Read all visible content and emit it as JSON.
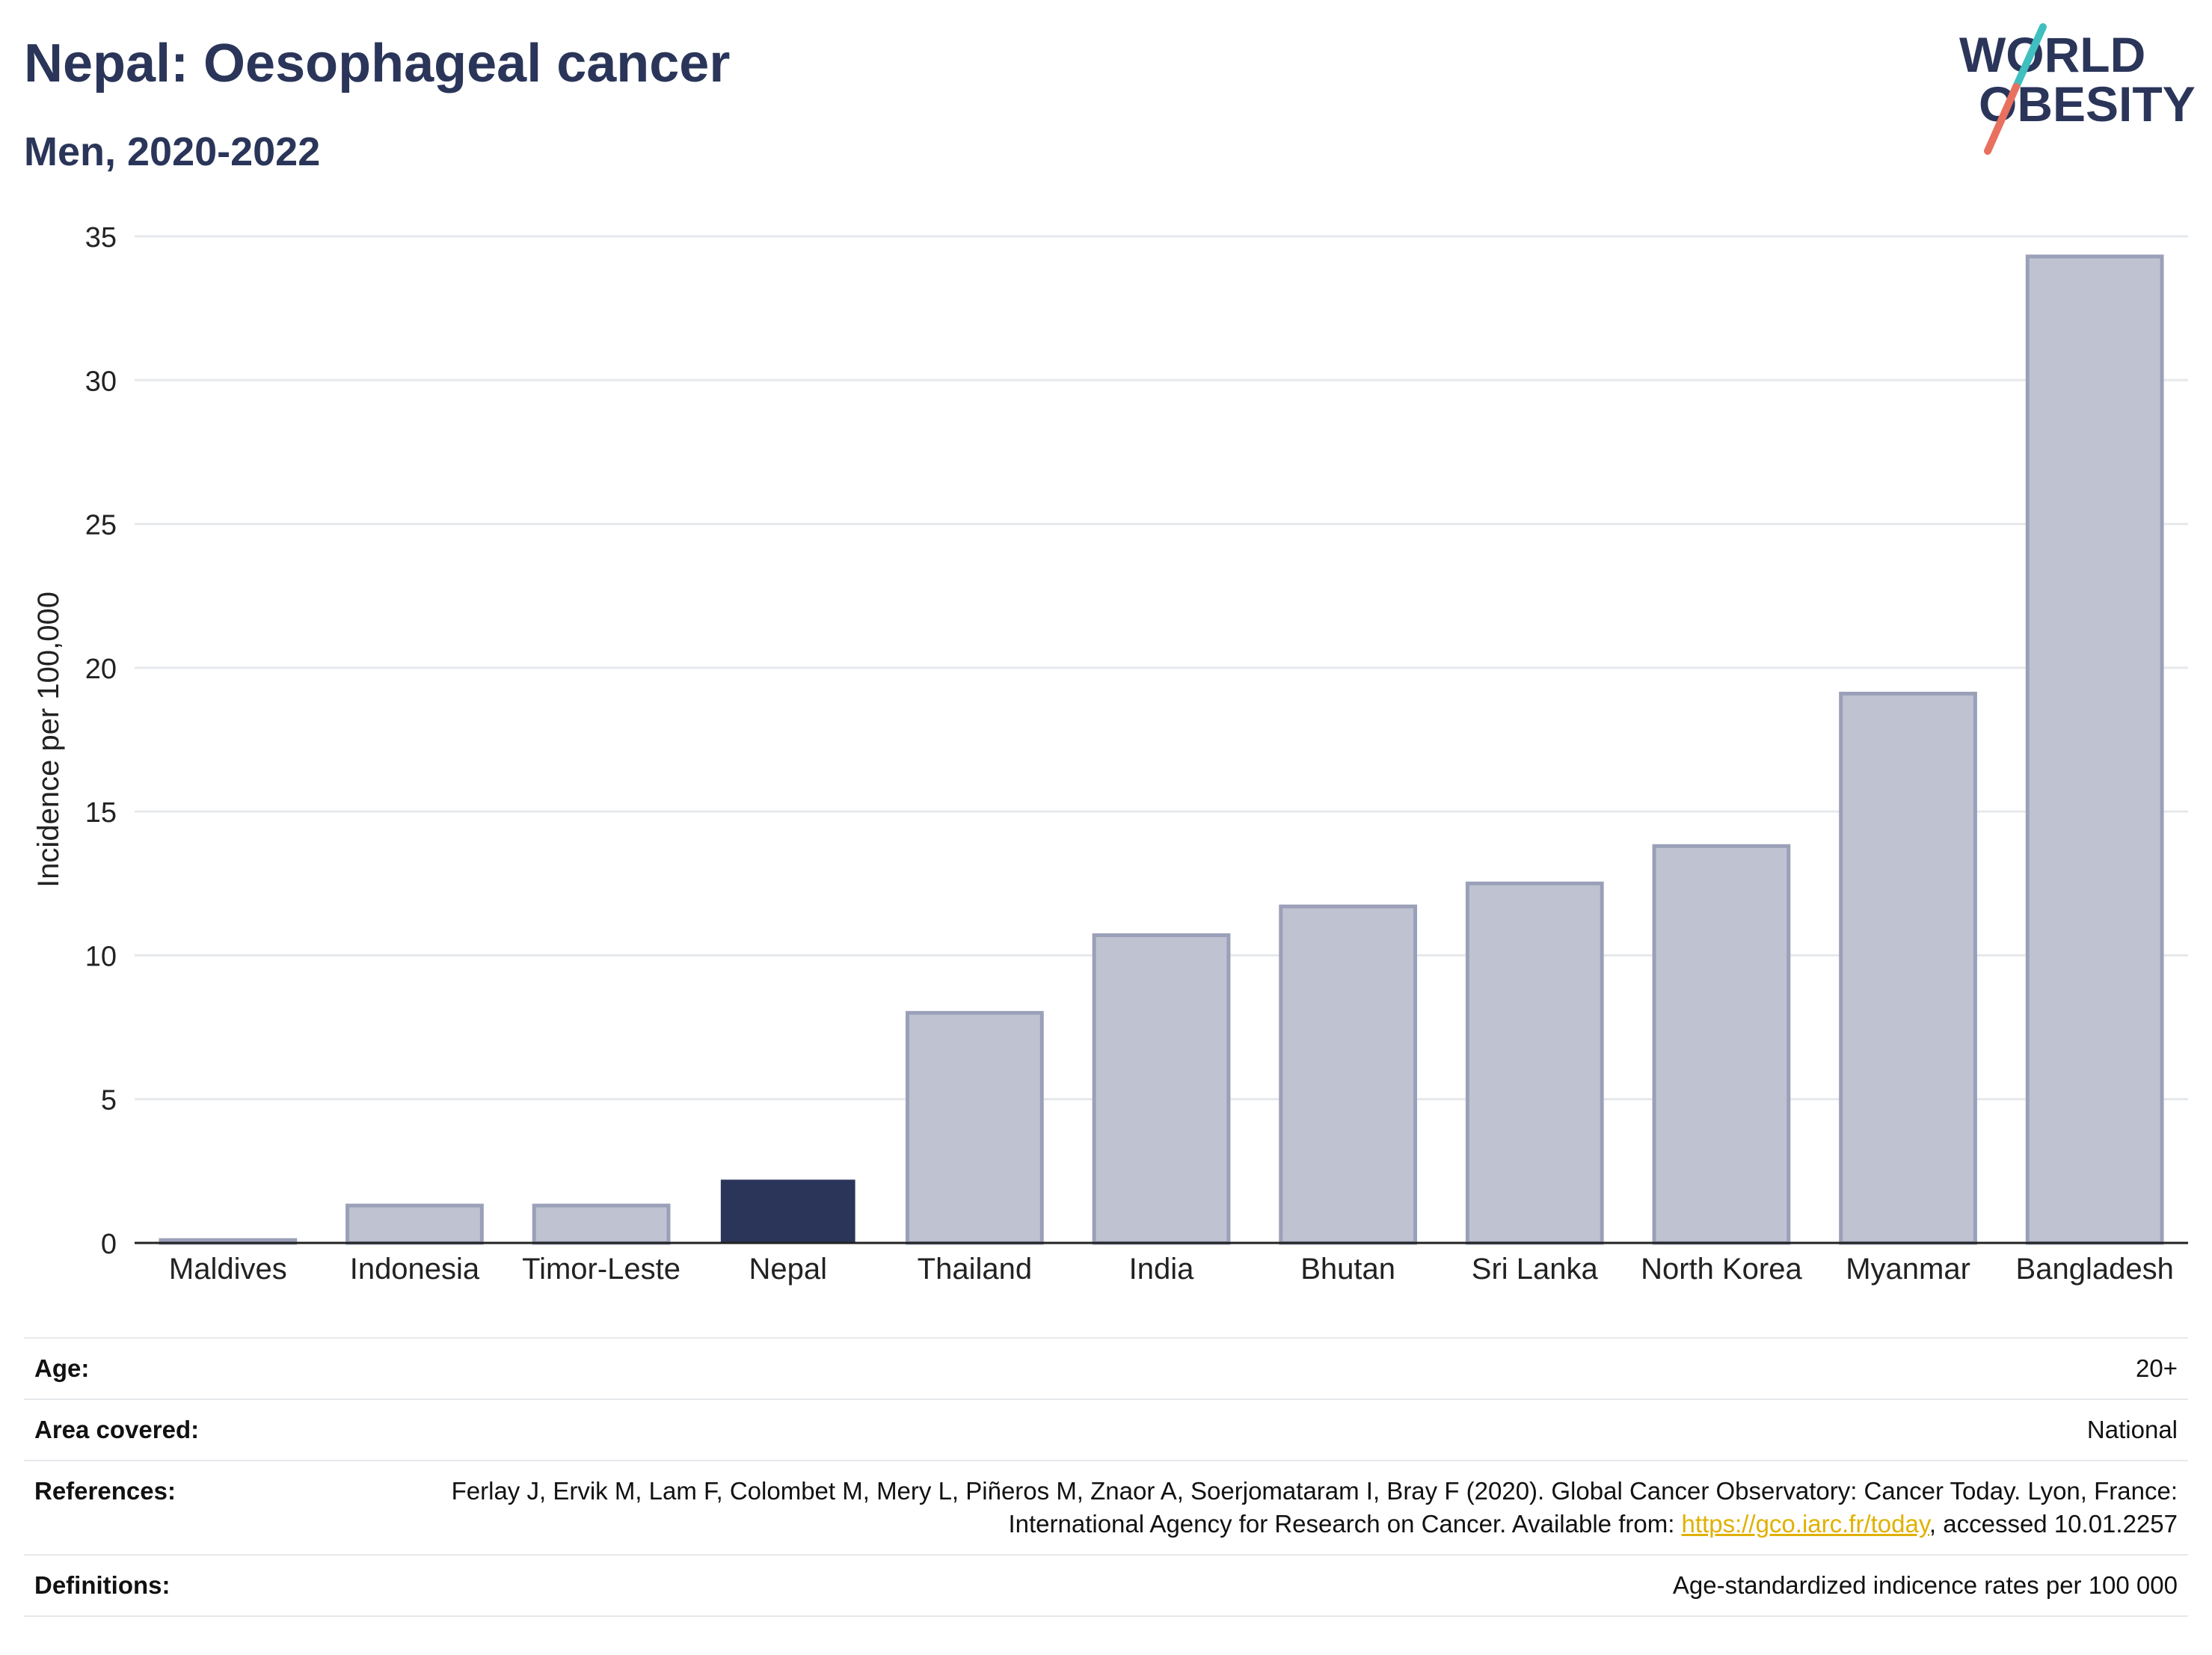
{
  "header": {
    "title": "Nepal: Oesophageal cancer",
    "subtitle": "Men, 2020-2022"
  },
  "logo": {
    "line1": "WORLD",
    "line2": "OBESITY",
    "slash_colors": [
      "#3fbfbf",
      "#e8705f"
    ],
    "text_color": "#2a3559"
  },
  "colors": {
    "highlight": "#2a3559",
    "bar": "#bfc3d1",
    "bar_stroke": "#9aa0b8",
    "grid": "#e6e9ec",
    "link": "#e0b100"
  },
  "chart_data": {
    "type": "bar",
    "title": "Nepal: Oesophageal cancer",
    "subtitle": "Men, 2020-2022",
    "xlabel": "",
    "ylabel": "Incidence per 100,000",
    "ylim": [
      0,
      35
    ],
    "yticks": [
      0,
      5,
      10,
      15,
      20,
      25,
      30,
      35
    ],
    "grid": true,
    "categories": [
      "Maldives",
      "Indonesia",
      "Timor-Leste",
      "Nepal",
      "Thailand",
      "India",
      "Bhutan",
      "Sri Lanka",
      "North Korea",
      "Myanmar",
      "Bangladesh"
    ],
    "values": [
      0.1,
      1.3,
      1.3,
      2.2,
      8.0,
      10.7,
      11.7,
      12.5,
      13.8,
      19.1,
      34.3
    ],
    "highlight": "Nepal"
  },
  "meta": {
    "rows": [
      {
        "label": "Age:",
        "value": "20+"
      },
      {
        "label": "Area covered:",
        "value": "National"
      },
      {
        "label": "References:",
        "value_before": "Ferlay J, Ervik M, Lam F, Colombet M, Mery L, Piñeros M, Znaor A, Soerjomataram I, Bray F (2020). Global Cancer Observatory: Cancer Today. Lyon, France: International Agency for Research on Cancer. Available from: ",
        "link": "https://gco.iarc.fr/today",
        "value_after": ", accessed 10.01.2257"
      },
      {
        "label": "Definitions:",
        "value": "Age-standardized indicence rates per 100 000"
      }
    ]
  }
}
